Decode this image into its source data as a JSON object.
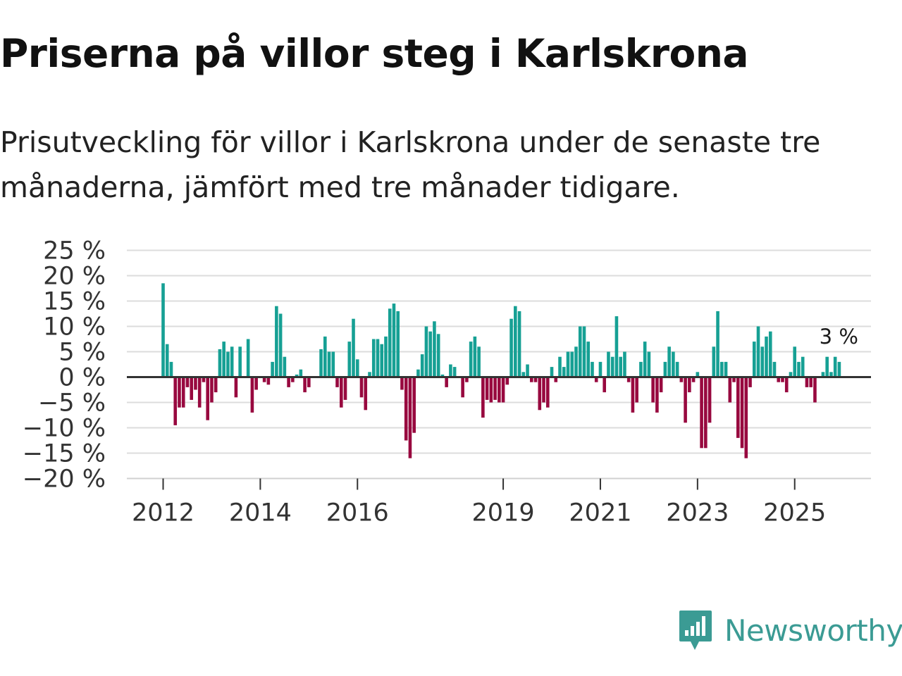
{
  "title": "Priserna på villor steg i Karlskrona",
  "subtitle": "Prisutveckling för villor i Karlskrona under de senaste tre månaderna, jämfört med tre månader tidigare.",
  "brand": "Newsworthy",
  "colors": {
    "positive": "#16a094",
    "negative": "#98093f",
    "brand": "#3b9b94"
  },
  "chart_data": {
    "type": "bar",
    "unit": "%",
    "ylim": [
      -20,
      25
    ],
    "yticks": [
      25,
      20,
      15,
      10,
      5,
      0,
      -5,
      -10,
      -15,
      -20
    ],
    "ytick_labels": [
      "25 %",
      "20 %",
      "15 %",
      "10 %",
      "5 %",
      "0 %",
      "−5 %",
      "−10 %",
      "−15 %",
      "−20 %"
    ],
    "xticks": [
      {
        "label": "2012",
        "month_index": 0
      },
      {
        "label": "2014",
        "month_index": 24
      },
      {
        "label": "2016",
        "month_index": 48
      },
      {
        "label": "2019",
        "month_index": 84
      },
      {
        "label": "2021",
        "month_index": 108
      },
      {
        "label": "2023",
        "month_index": 132
      },
      {
        "label": "2025",
        "month_index": 156
      }
    ],
    "start": "2012-01",
    "last_label": "3 %",
    "values": [
      18.5,
      6.5,
      3,
      -9.5,
      -6,
      -6,
      -2,
      -4.5,
      -2.5,
      -6,
      -1,
      -8.5,
      -5,
      -3,
      5.5,
      7,
      5,
      6,
      -4,
      6,
      0,
      7.5,
      -7,
      -2.5,
      0,
      -1,
      -1.5,
      3,
      14,
      12.5,
      4,
      -2,
      -1,
      0.5,
      1.5,
      -3,
      -2,
      0,
      0,
      5.5,
      8,
      5,
      5,
      -2,
      -6,
      -4.5,
      7,
      11.5,
      3.5,
      -4,
      -6.5,
      1,
      7.5,
      7.5,
      6.5,
      8,
      13.5,
      14.5,
      13,
      -2.5,
      -12.5,
      -16,
      -11,
      1.5,
      4.5,
      10,
      9,
      11,
      8.5,
      0.5,
      -2,
      2.5,
      2,
      0,
      -4,
      -1,
      7,
      8,
      6,
      -8,
      -4.5,
      -5,
      -4.5,
      -5,
      -5,
      -1.5,
      11.5,
      14,
      13,
      1,
      2.5,
      -1,
      -1,
      -6.5,
      -5,
      -6,
      2,
      -1,
      4,
      2,
      5,
      5,
      6,
      10,
      10,
      7,
      3,
      -1,
      3,
      -3,
      5,
      4,
      12,
      4,
      5,
      -1,
      -7,
      -5,
      3,
      7,
      5,
      -5,
      -7,
      -3,
      3,
      6,
      5,
      3,
      -1,
      -9,
      -3,
      -1,
      1,
      -14,
      -14,
      -9,
      6,
      13,
      3,
      3,
      -5,
      -1,
      -12,
      -14,
      -16,
      -2,
      7,
      10,
      6,
      8,
      9,
      3,
      -1,
      -1,
      -3,
      1,
      6,
      3,
      4,
      -2,
      -2,
      -5,
      0,
      1,
      4,
      1,
      4,
      3
    ]
  }
}
